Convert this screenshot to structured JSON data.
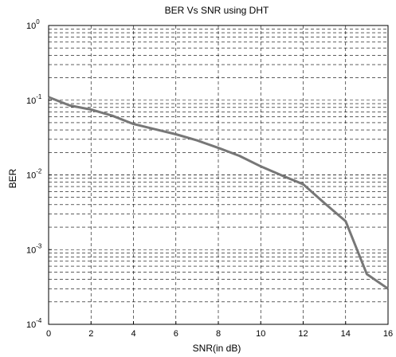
{
  "chart_data": {
    "type": "line",
    "title": "BER Vs SNR using DHT",
    "xlabel": "SNR(in dB)",
    "ylabel": "BER",
    "xlim": [
      0,
      16
    ],
    "ylim": [
      0.0001,
      1
    ],
    "yscale": "log",
    "grid": true,
    "grid_style": "dashed",
    "x_ticks": [
      0,
      2,
      4,
      6,
      8,
      10,
      12,
      14,
      16
    ],
    "y_ticks": [
      {
        "value": 1,
        "base": "10",
        "exp": "0"
      },
      {
        "value": 0.1,
        "base": "10",
        "exp": "-1"
      },
      {
        "value": 0.01,
        "base": "10",
        "exp": "-2"
      },
      {
        "value": 0.001,
        "base": "10",
        "exp": "-3"
      },
      {
        "value": 0.0001,
        "base": "10",
        "exp": "-4"
      }
    ],
    "series": [
      {
        "color": "#777777",
        "x": [
          0,
          1,
          2,
          3,
          4,
          5,
          6,
          7,
          8,
          9,
          10,
          11,
          12,
          13,
          14,
          15,
          16
        ],
        "y": [
          0.11,
          0.085,
          0.075,
          0.062,
          0.048,
          0.041,
          0.035,
          0.029,
          0.023,
          0.018,
          0.013,
          0.0098,
          0.0075,
          0.0042,
          0.0024,
          0.00047,
          0.0003
        ]
      }
    ]
  }
}
